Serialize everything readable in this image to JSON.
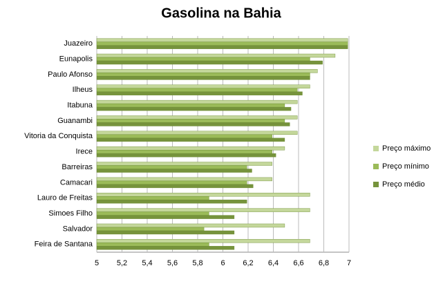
{
  "chart_data": {
    "type": "hbar",
    "title": "Gasolina na Bahia",
    "categories": [
      "Juazeiro",
      "Eunapolis",
      "Paulo Afonso",
      "Ilheus",
      "Itabuna",
      "Guanambi",
      "Vitoria da Conquista",
      "Irece",
      "Barreiras",
      "Camacari",
      "Lauro de Freitas",
      "Simoes Filho",
      "Salvador",
      "Feira de Santana"
    ],
    "series": [
      {
        "name": "Preço máximo",
        "color": "#c4d79b",
        "values": [
          6.99,
          6.89,
          6.75,
          6.69,
          6.59,
          6.59,
          6.59,
          6.49,
          6.39,
          6.39,
          6.69,
          6.69,
          6.49,
          6.69
        ]
      },
      {
        "name": "Preço mínimo",
        "color": "#9bbb59",
        "values": [
          6.99,
          6.69,
          6.69,
          6.59,
          6.49,
          6.49,
          6.39,
          6.39,
          6.19,
          6.19,
          5.89,
          5.89,
          5.85,
          5.89
        ]
      },
      {
        "name": "Preço médio",
        "color": "#76933c",
        "values": [
          6.99,
          6.79,
          6.69,
          6.63,
          6.54,
          6.53,
          6.49,
          6.42,
          6.23,
          6.24,
          6.19,
          6.09,
          6.09,
          6.09
        ]
      }
    ],
    "xlim": [
      5,
      7
    ],
    "xticks": [
      5,
      {
        "value": 5.2,
        "label": "5,2"
      },
      {
        "value": 5.4,
        "label": "5,4"
      },
      {
        "value": 5.6,
        "label": "5,6"
      },
      {
        "value": 5.8,
        "label": "5,8"
      },
      6,
      {
        "value": 6.2,
        "label": "6,2"
      },
      {
        "value": 6.4,
        "label": "6,4"
      },
      {
        "value": 6.6,
        "label": "6,6"
      },
      {
        "value": 6.8,
        "label": "6,8"
      },
      7
    ],
    "grid": true,
    "legend": "right"
  }
}
